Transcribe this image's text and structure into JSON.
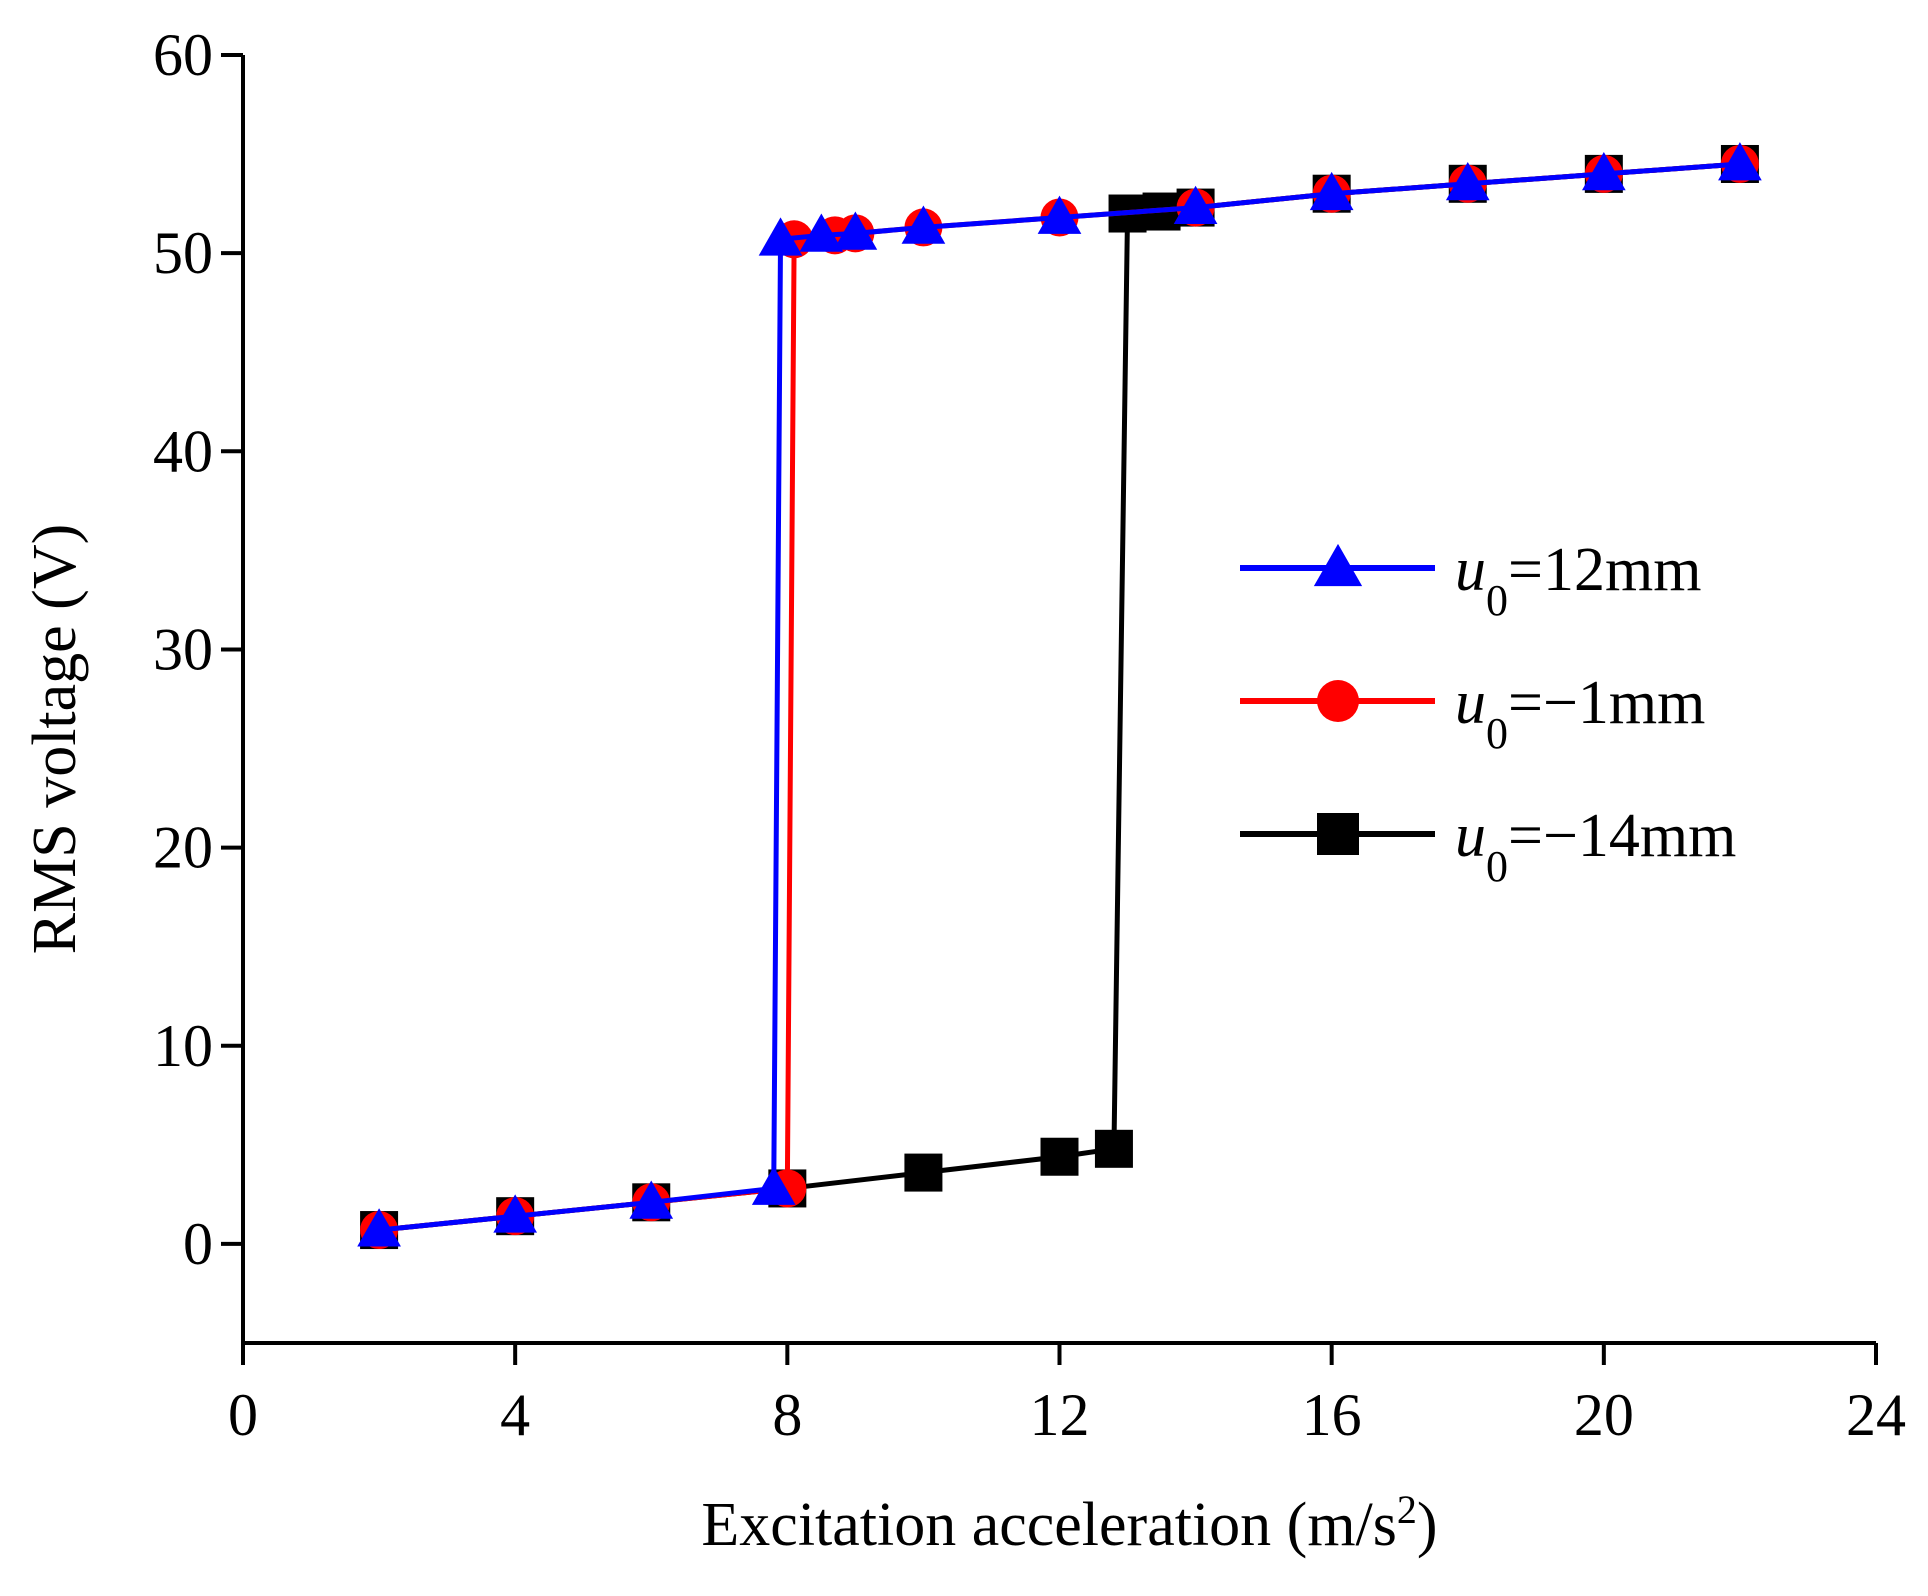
{
  "chart_data": {
    "type": "line",
    "title": "",
    "xlabel": "Excitation acceleration (m/s",
    "xlabel_sup": "2",
    "xlabel_close": ")",
    "ylabel": "RMS voltage (V)",
    "xlim": [
      0,
      24
    ],
    "ylim": [
      -5,
      60
    ],
    "xticks": [
      0,
      4,
      8,
      12,
      16,
      20,
      24
    ],
    "yticks": [
      0,
      10,
      20,
      30,
      40,
      50,
      60
    ],
    "grid": false,
    "legend_position": "right-middle",
    "series": [
      {
        "name": "u0=-14mm",
        "legend": {
          "var": "u",
          "sub": "0",
          "rest": "=−14mm"
        },
        "color": "#000000",
        "marker": "square",
        "x": [
          2,
          4,
          6,
          8,
          10,
          12,
          12.8,
          13,
          13.5,
          14,
          16,
          18,
          20,
          22
        ],
        "y": [
          0.7,
          1.4,
          2.1,
          2.8,
          3.6,
          4.4,
          4.8,
          52.0,
          52.1,
          52.3,
          53.0,
          53.5,
          54.0,
          54.5
        ],
        "markers_x": [
          2,
          4,
          6,
          8,
          10,
          12,
          12.8,
          13,
          13.5,
          14,
          16,
          18,
          20,
          22
        ],
        "markers_y": [
          0.7,
          1.4,
          2.1,
          2.8,
          3.6,
          4.4,
          4.8,
          52.0,
          52.1,
          52.3,
          53.0,
          53.5,
          54.0,
          54.5
        ]
      },
      {
        "name": "u0=-1mm",
        "legend": {
          "var": "u",
          "sub": "0",
          "rest": "=−1mm"
        },
        "color": "#ff0000",
        "marker": "circle",
        "x": [
          2,
          4,
          6,
          8,
          8.1,
          8.7,
          9,
          10,
          12,
          14,
          16,
          18,
          20,
          22
        ],
        "y": [
          0.7,
          1.4,
          2.1,
          2.8,
          50.7,
          50.9,
          51.0,
          51.3,
          51.8,
          52.3,
          53.0,
          53.5,
          54.0,
          54.5
        ],
        "markers_x": [
          2,
          4,
          6,
          8,
          8.1,
          8.7,
          9,
          10,
          12,
          14,
          16,
          18,
          20,
          22
        ],
        "markers_y": [
          0.7,
          1.4,
          2.1,
          2.8,
          50.7,
          50.9,
          51.0,
          51.3,
          51.8,
          52.3,
          53.0,
          53.5,
          54.0,
          54.5
        ]
      },
      {
        "name": "u0=12mm",
        "legend": {
          "var": "u",
          "sub": "0",
          "rest": "=12mm"
        },
        "color": "#0000ff",
        "marker": "triangle",
        "x": [
          2,
          4,
          6,
          7.8,
          7.9,
          8.5,
          9,
          10,
          12,
          14,
          16,
          18,
          20,
          22
        ],
        "y": [
          0.7,
          1.4,
          2.1,
          2.8,
          50.7,
          50.9,
          51.0,
          51.3,
          51.8,
          52.3,
          53.0,
          53.5,
          54.0,
          54.5
        ],
        "markers_x": [
          2,
          4,
          6,
          7.8,
          7.9,
          8.5,
          9,
          10,
          12,
          14,
          16,
          18,
          20,
          22
        ],
        "markers_y": [
          0.7,
          1.4,
          2.1,
          2.8,
          50.7,
          50.9,
          51.0,
          51.3,
          51.8,
          52.3,
          53.0,
          53.5,
          54.0,
          54.5
        ]
      }
    ],
    "legend_order": [
      "u0=12mm",
      "u0=-1mm",
      "u0=-14mm"
    ]
  }
}
